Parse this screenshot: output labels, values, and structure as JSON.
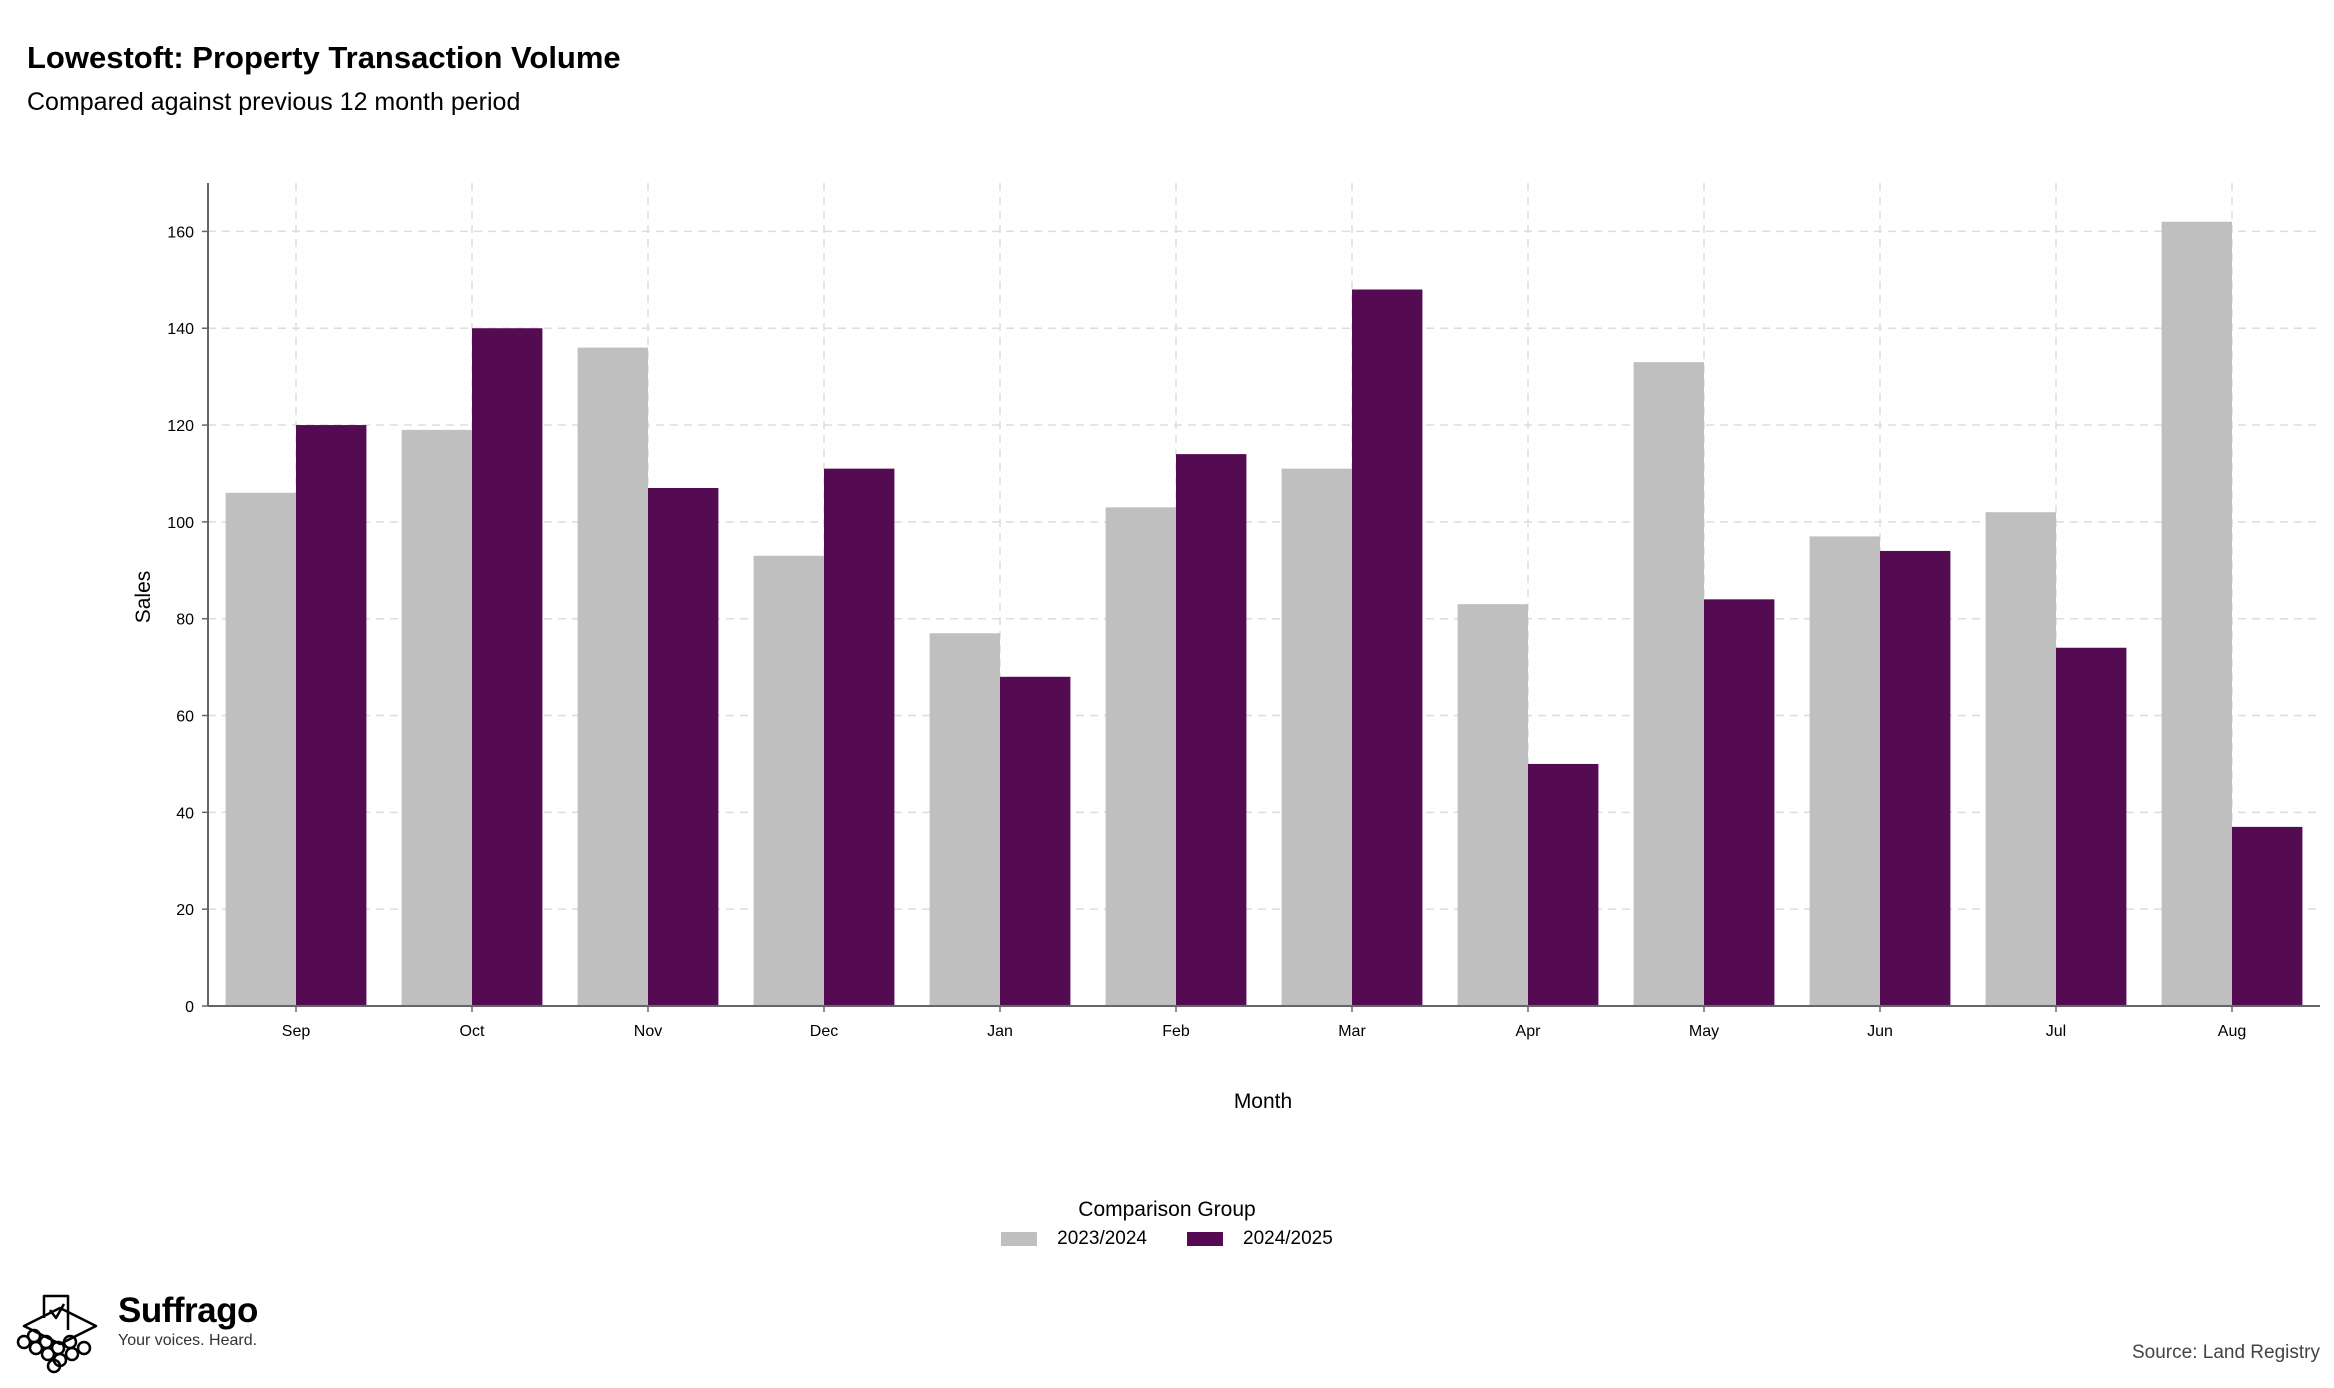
{
  "header": {
    "title": "Lowestoft: Property Transaction Volume",
    "subtitle": "Compared against previous 12 month period"
  },
  "colors": {
    "series_a": "#bfbfbf",
    "series_b": "#550b51",
    "grid": "#dddddd",
    "axis": "#666666"
  },
  "chart_data": {
    "type": "bar",
    "title": "Lowestoft: Property Transaction Volume",
    "subtitle": "Compared against previous 12 month period",
    "xlabel": "Month",
    "ylabel": "Sales",
    "ylim": [
      0,
      170
    ],
    "yticks": [
      0,
      20,
      40,
      60,
      80,
      100,
      120,
      140,
      160
    ],
    "grid": true,
    "legend_position": "bottom",
    "legend_title": "Comparison Group",
    "categories": [
      "Sep",
      "Oct",
      "Nov",
      "Dec",
      "Jan",
      "Feb",
      "Mar",
      "Apr",
      "May",
      "Jun",
      "Jul",
      "Aug"
    ],
    "series": [
      {
        "name": "2023/2024",
        "values": [
          106,
          119,
          136,
          93,
          77,
          103,
          111,
          83,
          133,
          97,
          102,
          162
        ]
      },
      {
        "name": "2024/2025",
        "values": [
          120,
          140,
          107,
          111,
          68,
          114,
          148,
          50,
          84,
          94,
          74,
          37
        ]
      }
    ]
  },
  "legend": {
    "title": "Comparison Group",
    "items": [
      "2023/2024",
      "2024/2025"
    ]
  },
  "branding": {
    "name": "Suffrago",
    "tagline": "Your voices. Heard.",
    "icon": "ballot-box-icon"
  },
  "footer": {
    "source": "Source: Land Registry"
  }
}
